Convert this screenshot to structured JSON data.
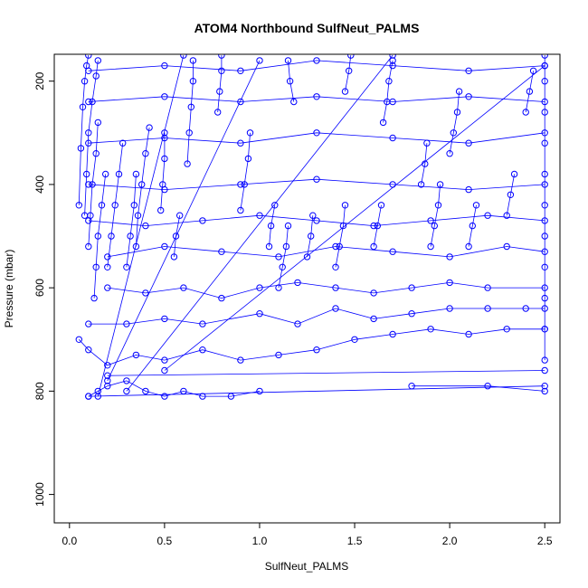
{
  "chart_data": {
    "type": "scatter",
    "title": "ATOM4 Northbound SulfNeut_PALMS",
    "xlabel": "SulfNeut_PALMS",
    "ylabel": "Pressure (mbar)",
    "xlim": [
      -0.08,
      2.58
    ],
    "ylim": [
      1055,
      148
    ],
    "y_reversed": true,
    "x_ticks": [
      0.0,
      0.5,
      1.0,
      1.5,
      2.0,
      2.5
    ],
    "x_tick_labels": [
      "0.0",
      "0.5",
      "1.0",
      "1.5",
      "2.0",
      "2.5"
    ],
    "y_ticks": [
      200,
      400,
      600,
      800,
      1000
    ],
    "y_tick_labels": [
      "200",
      "400",
      "600",
      "800",
      "1000"
    ],
    "series_color": "#0000ff",
    "marker": "open-circle",
    "connected": true,
    "grid": false,
    "series": [
      {
        "values": [
          [
            0.05,
            440
          ],
          [
            0.06,
            330
          ],
          [
            0.07,
            250
          ],
          [
            0.08,
            200
          ],
          [
            0.09,
            170
          ],
          [
            0.1,
            150
          ]
        ]
      },
      {
        "values": [
          [
            0.08,
            460
          ],
          [
            0.09,
            380
          ],
          [
            0.1,
            300
          ],
          [
            0.12,
            240
          ],
          [
            0.14,
            190
          ],
          [
            0.15,
            160
          ]
        ]
      },
      {
        "values": [
          [
            0.1,
            520
          ],
          [
            0.11,
            460
          ],
          [
            0.12,
            400
          ],
          [
            0.14,
            340
          ],
          [
            0.15,
            280
          ]
        ]
      },
      {
        "values": [
          [
            0.13,
            620
          ],
          [
            0.14,
            560
          ],
          [
            0.15,
            500
          ],
          [
            0.17,
            440
          ],
          [
            0.19,
            380
          ]
        ]
      },
      {
        "values": [
          [
            0.2,
            560
          ],
          [
            0.22,
            500
          ],
          [
            0.24,
            440
          ],
          [
            0.26,
            380
          ],
          [
            0.28,
            320
          ]
        ]
      },
      {
        "values": [
          [
            0.3,
            560
          ],
          [
            0.32,
            500
          ],
          [
            0.34,
            440
          ],
          [
            0.35,
            380
          ]
        ]
      },
      {
        "values": [
          [
            0.35,
            520
          ],
          [
            0.36,
            460
          ],
          [
            0.38,
            400
          ],
          [
            0.4,
            340
          ],
          [
            0.42,
            290
          ]
        ]
      },
      {
        "values": [
          [
            0.48,
            450
          ],
          [
            0.49,
            400
          ],
          [
            0.5,
            350
          ],
          [
            0.5,
            300
          ]
        ]
      },
      {
        "values": [
          [
            0.55,
            540
          ],
          [
            0.56,
            500
          ],
          [
            0.58,
            460
          ]
        ]
      },
      {
        "values": [
          [
            0.62,
            360
          ],
          [
            0.63,
            300
          ],
          [
            0.64,
            250
          ],
          [
            0.65,
            200
          ],
          [
            0.65,
            160
          ]
        ]
      },
      {
        "values": [
          [
            0.78,
            260
          ],
          [
            0.79,
            220
          ],
          [
            0.8,
            180
          ],
          [
            0.8,
            150
          ]
        ]
      },
      {
        "values": [
          [
            0.9,
            450
          ],
          [
            0.92,
            400
          ],
          [
            0.94,
            350
          ],
          [
            0.95,
            300
          ]
        ]
      },
      {
        "values": [
          [
            1.05,
            520
          ],
          [
            1.06,
            480
          ],
          [
            1.08,
            440
          ]
        ]
      },
      {
        "values": [
          [
            1.1,
            600
          ],
          [
            1.12,
            560
          ],
          [
            1.14,
            520
          ],
          [
            1.15,
            480
          ]
        ]
      },
      {
        "values": [
          [
            1.15,
            160
          ],
          [
            1.16,
            200
          ],
          [
            1.18,
            240
          ]
        ]
      },
      {
        "values": [
          [
            1.25,
            540
          ],
          [
            1.27,
            500
          ],
          [
            1.28,
            460
          ]
        ]
      },
      {
        "values": [
          [
            1.4,
            560
          ],
          [
            1.42,
            520
          ],
          [
            1.44,
            480
          ],
          [
            1.45,
            440
          ]
        ]
      },
      {
        "values": [
          [
            1.45,
            220
          ],
          [
            1.47,
            180
          ],
          [
            1.48,
            150
          ]
        ]
      },
      {
        "values": [
          [
            1.6,
            520
          ],
          [
            1.62,
            480
          ],
          [
            1.64,
            440
          ]
        ]
      },
      {
        "values": [
          [
            1.65,
            280
          ],
          [
            1.67,
            240
          ],
          [
            1.68,
            200
          ],
          [
            1.7,
            160
          ]
        ]
      },
      {
        "values": [
          [
            1.85,
            400
          ],
          [
            1.87,
            360
          ],
          [
            1.88,
            320
          ]
        ]
      },
      {
        "values": [
          [
            1.9,
            520
          ],
          [
            1.92,
            480
          ],
          [
            1.94,
            440
          ],
          [
            1.95,
            400
          ]
        ]
      },
      {
        "values": [
          [
            2.0,
            340
          ],
          [
            2.02,
            300
          ],
          [
            2.04,
            260
          ],
          [
            2.05,
            220
          ]
        ]
      },
      {
        "values": [
          [
            2.1,
            520
          ],
          [
            2.12,
            480
          ],
          [
            2.14,
            440
          ]
        ]
      },
      {
        "values": [
          [
            2.3,
            460
          ],
          [
            2.32,
            420
          ],
          [
            2.34,
            380
          ]
        ]
      },
      {
        "values": [
          [
            2.4,
            260
          ],
          [
            2.42,
            220
          ],
          [
            2.44,
            180
          ]
        ]
      },
      {
        "values": [
          [
            2.5,
            740
          ],
          [
            2.5,
            680
          ],
          [
            2.5,
            620
          ],
          [
            2.5,
            560
          ],
          [
            2.5,
            500
          ],
          [
            2.5,
            440
          ],
          [
            2.5,
            380
          ],
          [
            2.5,
            320
          ],
          [
            2.5,
            260
          ],
          [
            2.5,
            200
          ],
          [
            2.5,
            150
          ]
        ]
      },
      {
        "values": [
          [
            0.1,
            810
          ],
          [
            0.15,
            800
          ],
          [
            0.2,
            790
          ],
          [
            0.3,
            780
          ],
          [
            0.4,
            800
          ],
          [
            0.5,
            810
          ],
          [
            0.6,
            800
          ],
          [
            0.7,
            810
          ],
          [
            0.85,
            810
          ],
          [
            1.0,
            800
          ]
        ]
      },
      {
        "values": [
          [
            0.05,
            700
          ],
          [
            0.1,
            720
          ],
          [
            0.2,
            750
          ],
          [
            0.35,
            730
          ],
          [
            0.5,
            740
          ],
          [
            0.7,
            720
          ],
          [
            0.9,
            740
          ],
          [
            1.1,
            730
          ],
          [
            1.3,
            720
          ],
          [
            1.5,
            700
          ],
          [
            1.7,
            690
          ],
          [
            1.9,
            680
          ],
          [
            2.1,
            690
          ],
          [
            2.3,
            680
          ],
          [
            2.5,
            680
          ]
        ]
      },
      {
        "values": [
          [
            0.1,
            670
          ],
          [
            0.3,
            670
          ],
          [
            0.5,
            660
          ],
          [
            0.7,
            670
          ],
          [
            1.0,
            650
          ],
          [
            1.2,
            670
          ],
          [
            1.4,
            640
          ],
          [
            1.6,
            660
          ],
          [
            1.8,
            650
          ],
          [
            2.0,
            640
          ],
          [
            2.2,
            640
          ],
          [
            2.4,
            640
          ],
          [
            2.5,
            640
          ]
        ]
      },
      {
        "values": [
          [
            0.2,
            600
          ],
          [
            0.4,
            610
          ],
          [
            0.6,
            600
          ],
          [
            0.8,
            620
          ],
          [
            1.0,
            600
          ],
          [
            1.2,
            590
          ],
          [
            1.4,
            600
          ],
          [
            1.6,
            610
          ],
          [
            1.8,
            600
          ],
          [
            2.0,
            590
          ],
          [
            2.2,
            600
          ],
          [
            2.5,
            600
          ]
        ]
      },
      {
        "values": [
          [
            0.2,
            540
          ],
          [
            0.5,
            520
          ],
          [
            0.8,
            530
          ],
          [
            1.1,
            540
          ],
          [
            1.4,
            520
          ],
          [
            1.7,
            530
          ],
          [
            2.0,
            540
          ],
          [
            2.3,
            520
          ],
          [
            2.5,
            530
          ]
        ]
      },
      {
        "values": [
          [
            0.1,
            470
          ],
          [
            0.4,
            480
          ],
          [
            0.7,
            470
          ],
          [
            1.0,
            460
          ],
          [
            1.3,
            470
          ],
          [
            1.6,
            480
          ],
          [
            1.9,
            470
          ],
          [
            2.2,
            460
          ],
          [
            2.5,
            470
          ]
        ]
      },
      {
        "values": [
          [
            0.1,
            400
          ],
          [
            0.5,
            410
          ],
          [
            0.9,
            400
          ],
          [
            1.3,
            390
          ],
          [
            1.7,
            400
          ],
          [
            2.1,
            410
          ],
          [
            2.5,
            400
          ]
        ]
      },
      {
        "values": [
          [
            0.1,
            320
          ],
          [
            0.5,
            310
          ],
          [
            0.9,
            320
          ],
          [
            1.3,
            300
          ],
          [
            1.7,
            310
          ],
          [
            2.1,
            320
          ],
          [
            2.5,
            300
          ]
        ]
      },
      {
        "values": [
          [
            0.1,
            240
          ],
          [
            0.5,
            230
          ],
          [
            0.9,
            240
          ],
          [
            1.3,
            230
          ],
          [
            1.7,
            240
          ],
          [
            2.1,
            230
          ],
          [
            2.5,
            240
          ]
        ]
      },
      {
        "values": [
          [
            0.1,
            180
          ],
          [
            0.5,
            170
          ],
          [
            0.9,
            180
          ],
          [
            1.3,
            160
          ],
          [
            1.7,
            170
          ],
          [
            2.1,
            180
          ],
          [
            2.5,
            170
          ]
        ]
      },
      {
        "values": [
          [
            0.15,
            810
          ],
          [
            0.6,
            150
          ]
        ]
      },
      {
        "values": [
          [
            0.2,
            780
          ],
          [
            1.0,
            160
          ]
        ]
      },
      {
        "values": [
          [
            0.3,
            800
          ],
          [
            1.7,
            150
          ]
        ]
      },
      {
        "values": [
          [
            0.5,
            760
          ],
          [
            2.5,
            170
          ]
        ]
      },
      {
        "values": [
          [
            0.1,
            810
          ],
          [
            2.5,
            790
          ]
        ]
      },
      {
        "values": [
          [
            0.2,
            770
          ],
          [
            2.5,
            760
          ]
        ]
      },
      {
        "values": [
          [
            1.8,
            790
          ],
          [
            2.2,
            790
          ],
          [
            2.5,
            800
          ]
        ]
      }
    ]
  }
}
